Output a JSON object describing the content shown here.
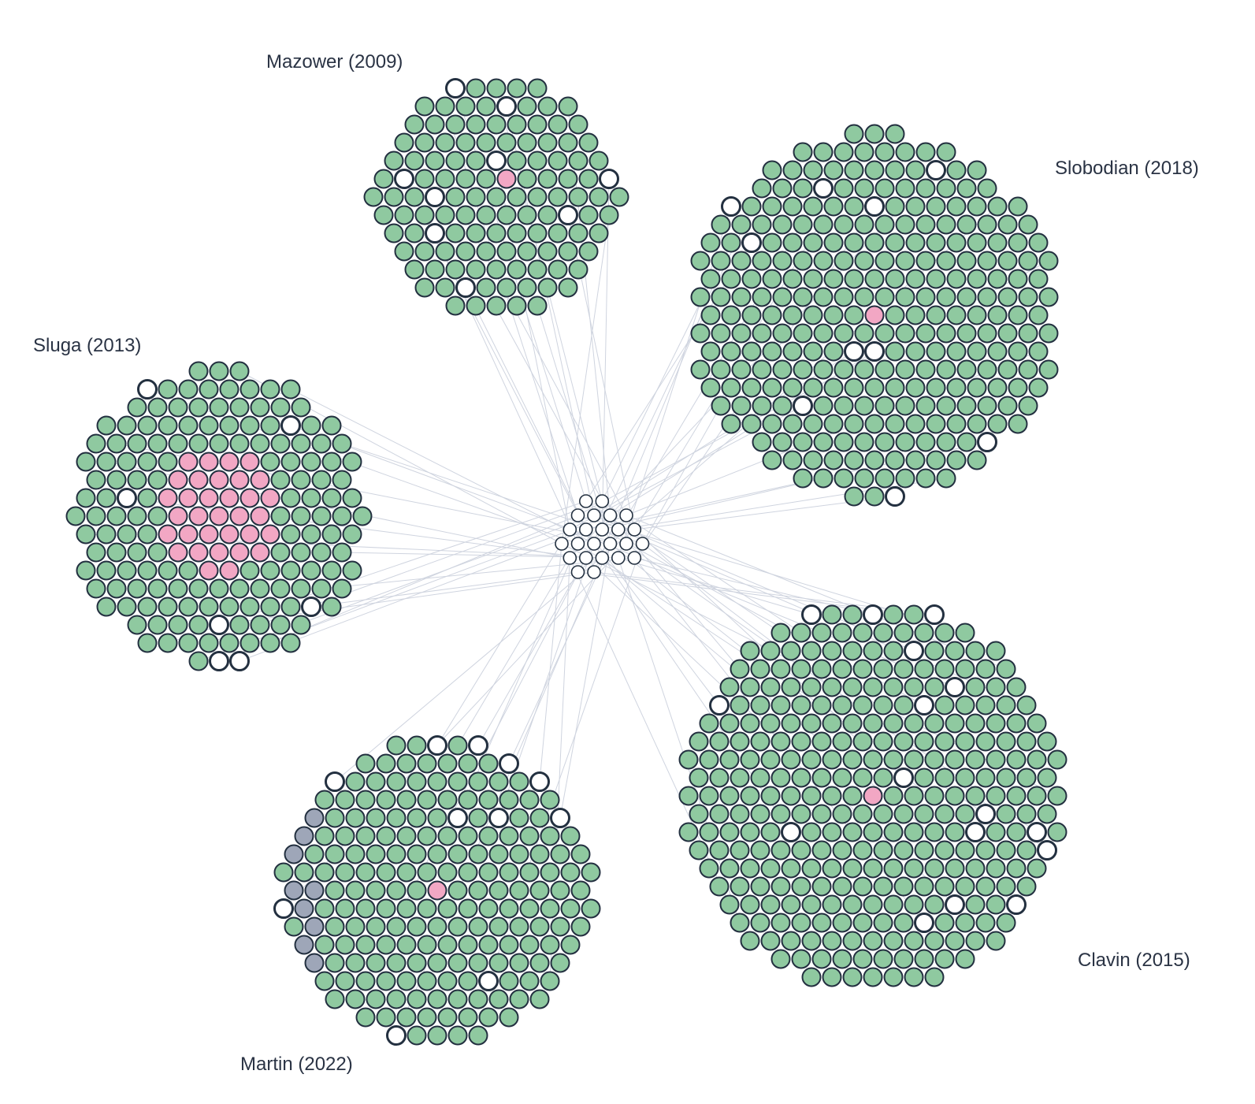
{
  "colors": {
    "primary": "#8fc9a0",
    "highlight": "#f2a7c4",
    "shared": "#ffffff",
    "other": "#9ea6b8",
    "outline": "#233040",
    "edge": "#cfd4df"
  },
  "hub": {
    "node_count": 24
  },
  "clusters": [
    {
      "id": "mazower",
      "label": "Mazower (2009)"
    },
    {
      "id": "slobodian",
      "label": "Slobodian (2018)"
    },
    {
      "id": "sluga",
      "label": "Sluga (2013)"
    },
    {
      "id": "martin",
      "label": "Martin (2022)"
    },
    {
      "id": "clavin",
      "label": "Clavin (2015)"
    }
  ]
}
